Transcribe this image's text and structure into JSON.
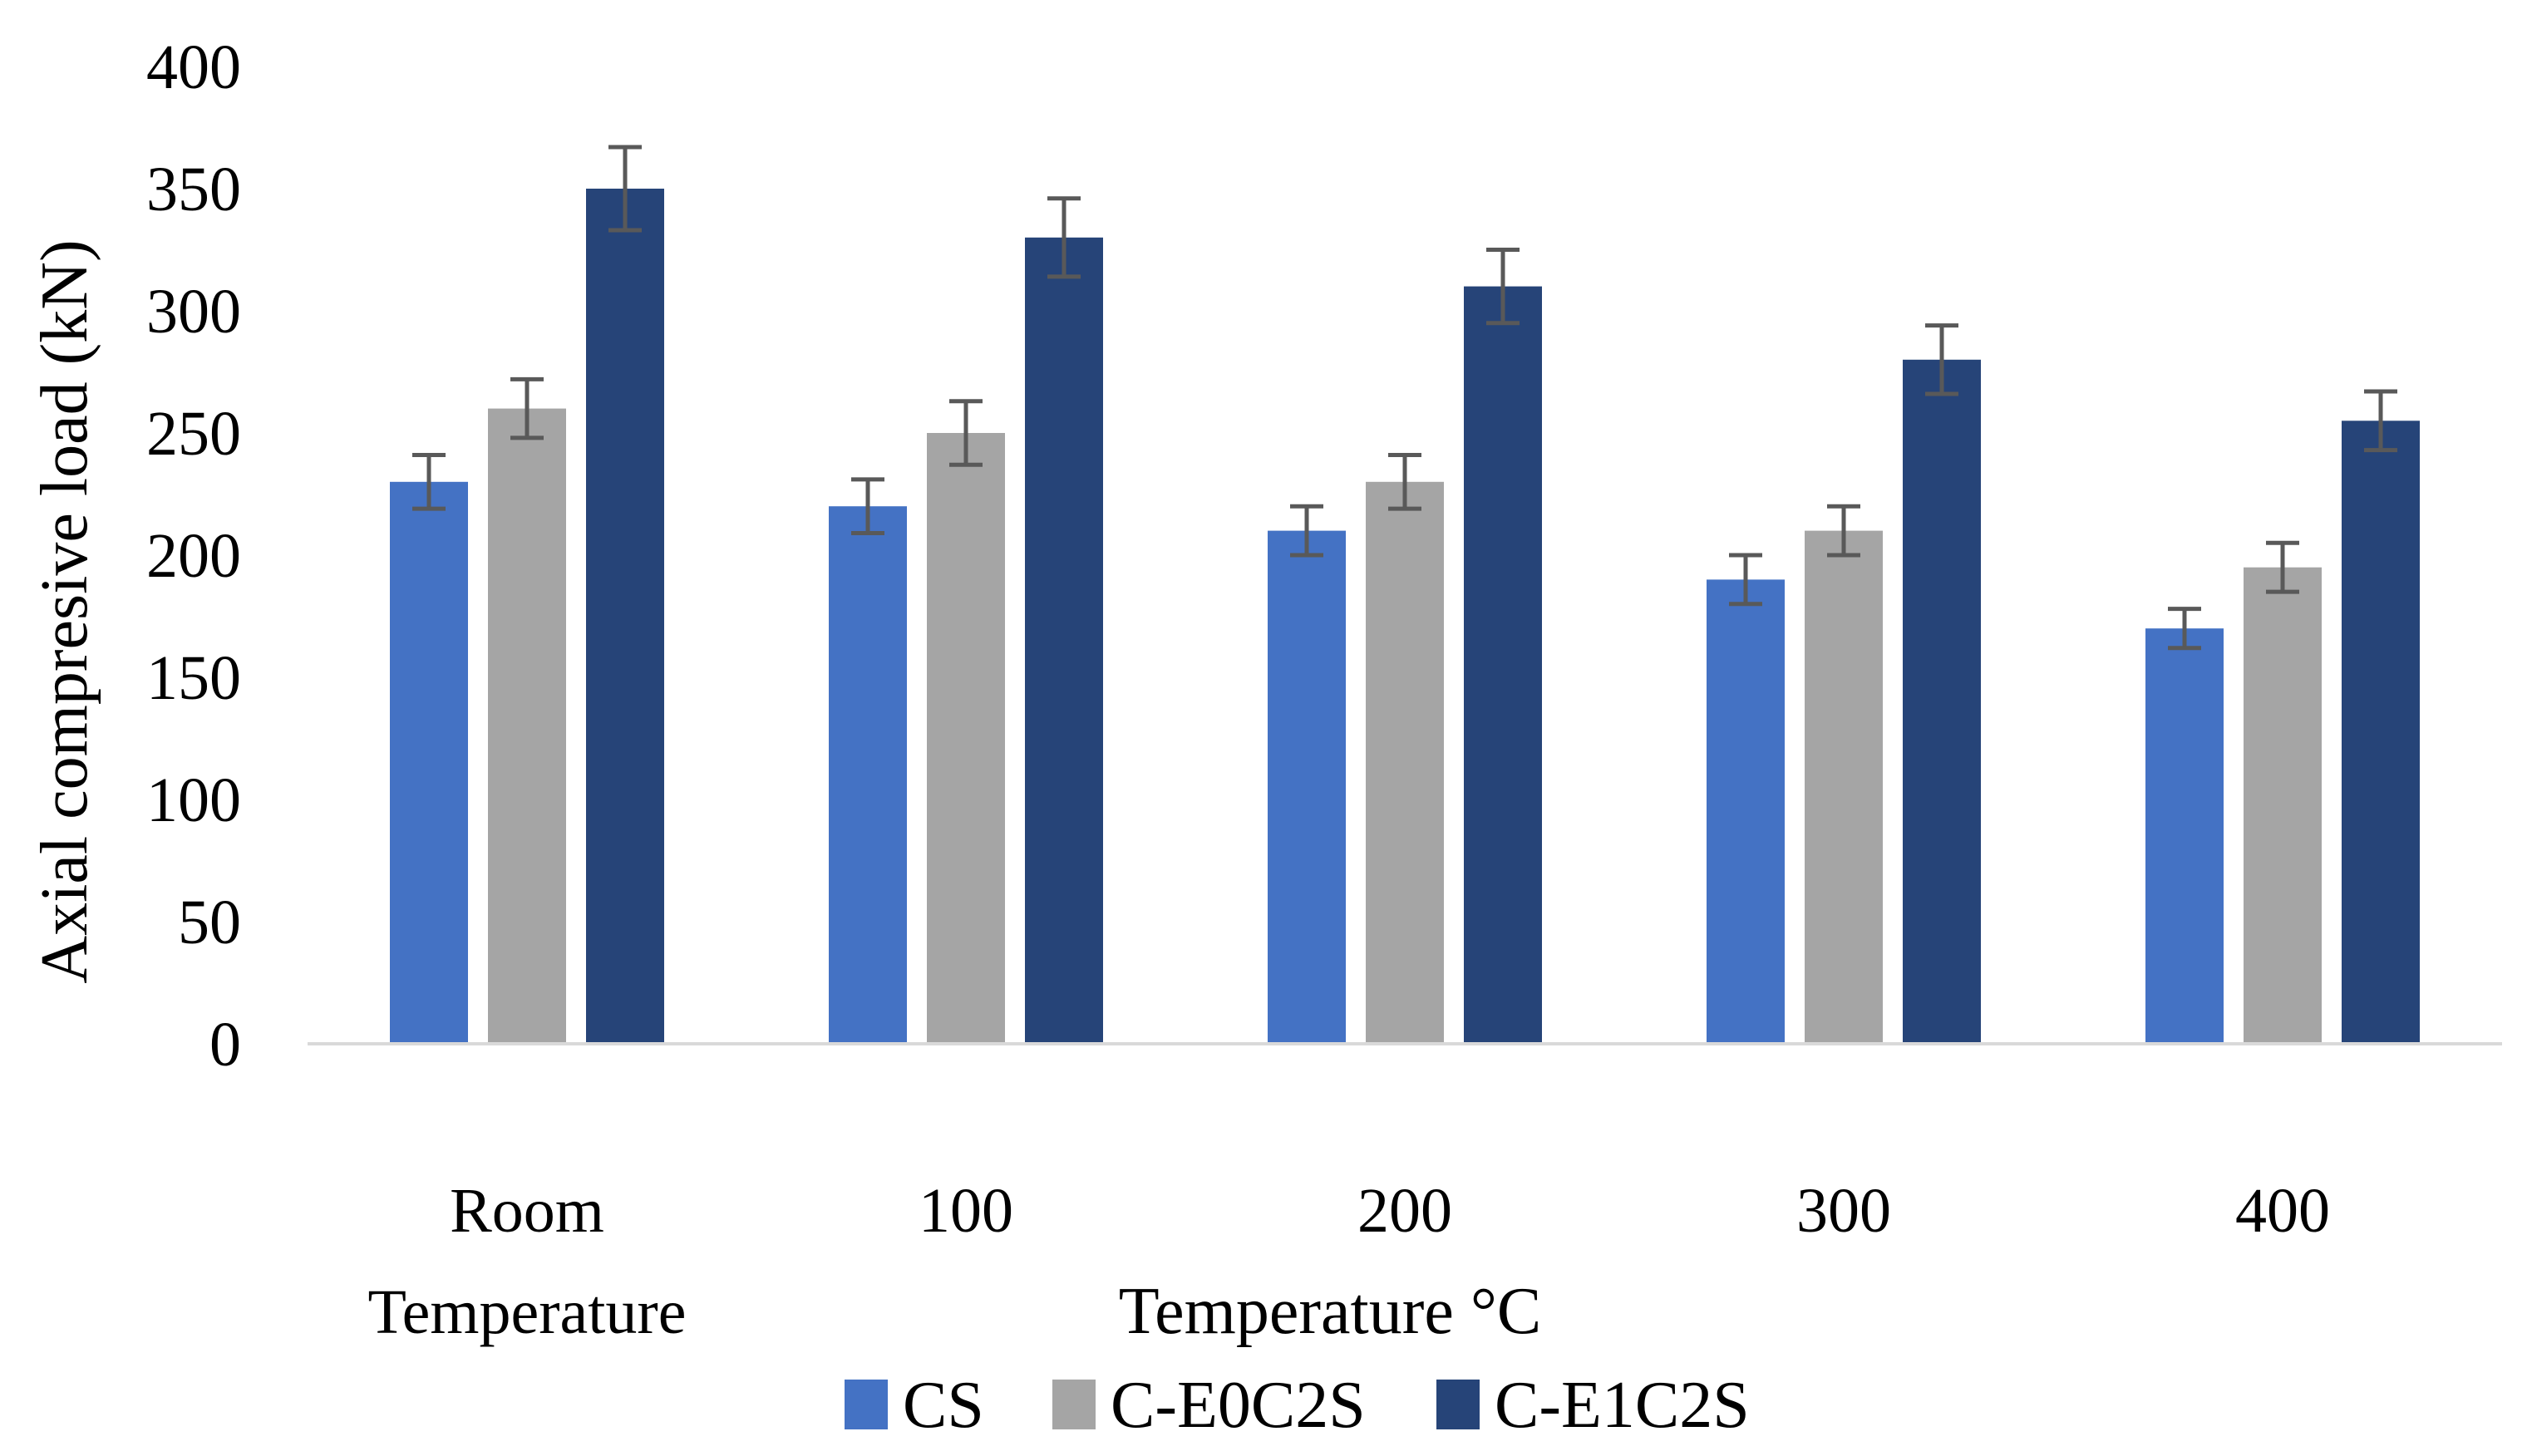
{
  "chart_data": {
    "type": "bar",
    "title": "",
    "xlabel": "Temperature °C",
    "ylabel": "Axial compresive load (kN)",
    "ylim": [
      0,
      400
    ],
    "yticks": [
      0,
      50,
      100,
      150,
      200,
      250,
      300,
      350,
      400
    ],
    "ytick_labels": [
      "0",
      "50",
      "100",
      "150",
      "200",
      "250",
      "300",
      "350",
      "400"
    ],
    "categories": [
      [
        "Room",
        "Temperature"
      ],
      [
        "100"
      ],
      [
        "200"
      ],
      [
        "300"
      ],
      [
        "400"
      ]
    ],
    "series": [
      {
        "name": "CS",
        "color": "#4472c4",
        "values": [
          230,
          220,
          210,
          190,
          170
        ],
        "errors": [
          11,
          11,
          10,
          10,
          8
        ]
      },
      {
        "name": "C-E0C2S",
        "color": "#a5a5a5",
        "values": [
          260,
          250,
          230,
          210,
          195
        ],
        "errors": [
          12,
          13,
          11,
          10,
          10
        ]
      },
      {
        "name": "C-E1C2S",
        "color": "#264478",
        "values": [
          350,
          330,
          310,
          280,
          255
        ],
        "errors": [
          17,
          16,
          15,
          14,
          12
        ]
      }
    ],
    "error_bar_color": "#595959",
    "grid": false,
    "legend_position": "bottom"
  }
}
